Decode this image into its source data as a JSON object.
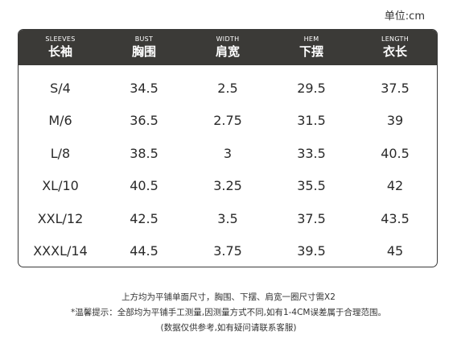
{
  "unit_label": "单位:cm",
  "headers": [
    {
      "en": "SLEEVES",
      "zh": "长袖"
    },
    {
      "en": "BUST",
      "zh": "胸围"
    },
    {
      "en": "WIDTH",
      "zh": "肩宽"
    },
    {
      "en": "HEM",
      "zh": "下摆"
    },
    {
      "en": "LENGTH",
      "zh": "衣长"
    }
  ],
  "rows": [
    [
      "S/4",
      "34.5",
      "2.5",
      "29.5",
      "37.5"
    ],
    [
      "M/6",
      "36.5",
      "2.75",
      "31.5",
      "39"
    ],
    [
      "L/8",
      "38.5",
      "3",
      "33.5",
      "40.5"
    ],
    [
      "XL/10",
      "40.5",
      "3.25",
      "35.5",
      "42"
    ],
    [
      "XXL/12",
      "42.5",
      "3.5",
      "37.5",
      "43.5"
    ],
    [
      "XXXL/14",
      "44.5",
      "3.75",
      "39.5",
      "45"
    ]
  ],
  "notes": [
    "上方均为平铺单面尺寸，胸围、下摆、肩宽一圈尺寸需X2",
    "*温馨提示：全部均为平铺手工测量,因测量方式不同,如有1-4CM误差属于合理范围。",
    "(数据仅供参考,如有疑问请联系客服)"
  ]
}
